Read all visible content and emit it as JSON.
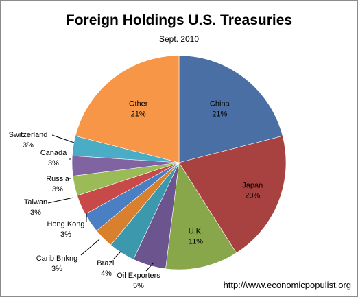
{
  "chart_data": {
    "type": "pie",
    "title": "Foreign Holdings U.S. Treasuries",
    "subtitle": "Sept.  2010",
    "slices": [
      {
        "label": "China",
        "value": 21,
        "value_label": "21%",
        "color": "#4a6fa5"
      },
      {
        "label": "Japan",
        "value": 20,
        "value_label": "20%",
        "color": "#a84240"
      },
      {
        "label": "U.K.",
        "value": 11,
        "value_label": "11%",
        "color": "#88a64a"
      },
      {
        "label": "Oil Exporters",
        "value": 5,
        "value_label": "5%",
        "color": "#6c548e"
      },
      {
        "label": "Brazil",
        "value": 4,
        "value_label": "4%",
        "color": "#3c99ad"
      },
      {
        "label": "Carib Bnkng",
        "value": 3,
        "value_label": "3%",
        "color": "#d9802f"
      },
      {
        "label": "Hong Kong",
        "value": 3,
        "value_label": "3%",
        "color": "#4a7fc4"
      },
      {
        "label": "Taiwan",
        "value": 3,
        "value_label": "3%",
        "color": "#c84a48"
      },
      {
        "label": "Russia",
        "value": 3,
        "value_label": "3%",
        "color": "#9bbb59"
      },
      {
        "label": "Canada",
        "value": 3,
        "value_label": "3%",
        "color": "#8064a2"
      },
      {
        "label": "Switzerland",
        "value": 3,
        "value_label": "3%",
        "color": "#4bacc6"
      },
      {
        "label": "Other",
        "value": 21,
        "value_label": "21%",
        "color": "#f79646"
      }
    ]
  },
  "credit": "http://www.economicpopulist.org"
}
